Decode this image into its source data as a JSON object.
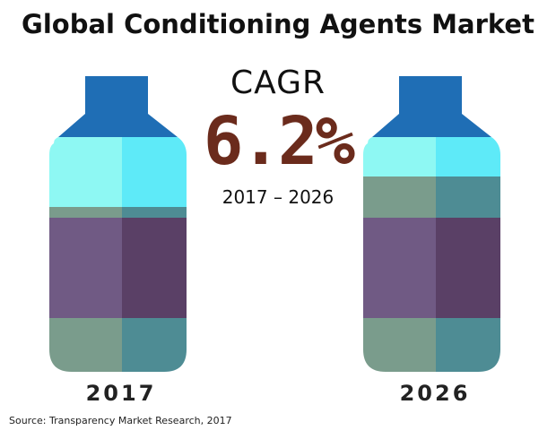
{
  "title": "Global Conditioning Agents Market",
  "cagr": {
    "label": "CAGR",
    "value": "6.2%",
    "period": "2017 – 2026"
  },
  "source": "Source: Transparency Market Research, 2017",
  "colors": {
    "cap": "#1f6eb5",
    "teal_light": "#5eeaf8",
    "teal_light_left": "#8ef8f3",
    "grey_green": "#7a9c8c",
    "grey_green_right": "#4e8c94",
    "purple_left": "#705a84",
    "purple_right": "#5a4066",
    "cagr_value": "#6b2b1c"
  },
  "chart_data": {
    "type": "bar",
    "categories": [
      "2017",
      "2026"
    ],
    "cagr_percent": 6.2,
    "period": "2017 – 2026"
  }
}
